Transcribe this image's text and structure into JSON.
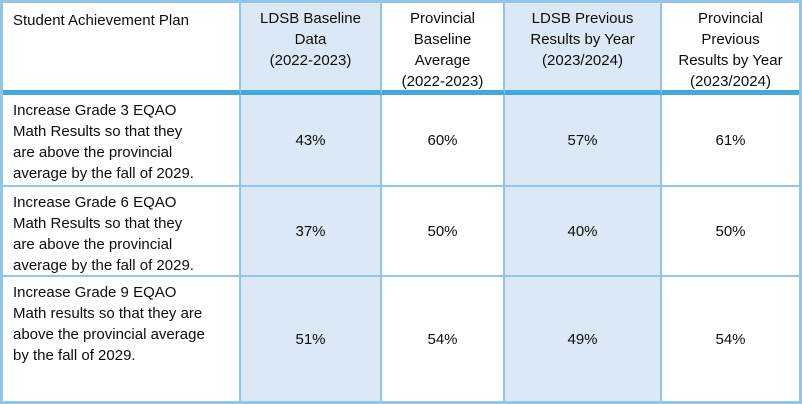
{
  "colors": {
    "border_light": "#93C5E8",
    "border_accent": "#41A9DC",
    "cell_highlight": "#DBE9F6",
    "text": "#0D0D0D"
  },
  "table": {
    "headers": [
      "Student Achievement Plan",
      "LDSB Baseline\nData\n(2022-2023)",
      "Provincial\nBaseline\nAverage\n(2022-2023)",
      "LDSB Previous\nResults by Year\n(2023/2024)",
      "Provincial\nPrevious\nResults by Year\n(2023/2024)"
    ],
    "rows": [
      {
        "goal": "Increase Grade 3 EQAO\nMath Results so that they\nare above the provincial\naverage by the fall of 2029.",
        "values": [
          "43%",
          "60%",
          "57%",
          "61%"
        ]
      },
      {
        "goal": "Increase Grade 6 EQAO\nMath Results so that they\nare above the provincial\naverage by the fall of 2029.",
        "values": [
          "37%",
          "50%",
          "40%",
          "50%"
        ]
      },
      {
        "goal": "Increase Grade 9 EQAO\nMath results so that they are\nabove the provincial average\nby the fall of 2029.",
        "values": [
          "51%",
          "54%",
          "49%",
          "54%"
        ]
      }
    ]
  },
  "chart_data": {
    "type": "table",
    "columns": [
      "Student Achievement Plan",
      "LDSB Baseline Data (2022-2023)",
      "Provincial Baseline Average (2022-2023)",
      "LDSB Previous Results by Year (2023/2024)",
      "Provincial Previous Results by Year (2023/2024)"
    ],
    "rows": [
      [
        "Increase Grade 3 EQAO Math Results so that they are above the provincial average by the fall of 2029.",
        "43%",
        "60%",
        "57%",
        "61%"
      ],
      [
        "Increase Grade 6 EQAO Math Results so that they are above the provincial average by the fall of 2029.",
        "37%",
        "50%",
        "40%",
        "50%"
      ],
      [
        "Increase Grade 9 EQAO Math results so that they are above the provincial average by the fall of 2029.",
        "51%",
        "54%",
        "49%",
        "54%"
      ]
    ]
  }
}
